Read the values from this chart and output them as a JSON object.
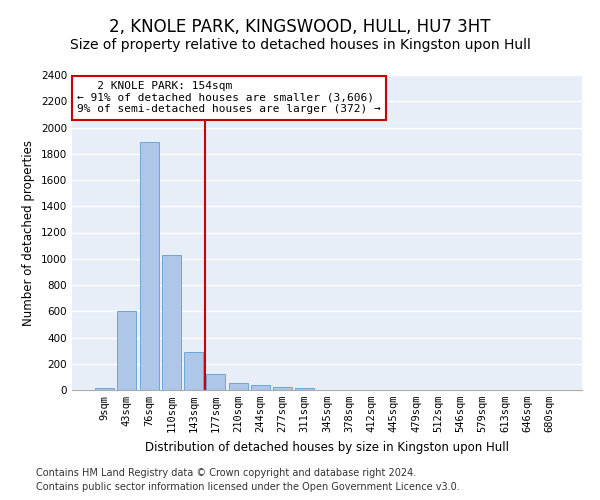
{
  "title": "2, KNOLE PARK, KINGSWOOD, HULL, HU7 3HT",
  "subtitle": "Size of property relative to detached houses in Kingston upon Hull",
  "xlabel": "Distribution of detached houses by size in Kingston upon Hull",
  "ylabel": "Number of detached properties",
  "footer_line1": "Contains HM Land Registry data © Crown copyright and database right 2024.",
  "footer_line2": "Contains public sector information licensed under the Open Government Licence v3.0.",
  "annotation_line1": "   2 KNOLE PARK: 154sqm",
  "annotation_line2": "← 91% of detached houses are smaller (3,606)",
  "annotation_line3": "9% of semi-detached houses are larger (372) →",
  "bar_color": "#aec6e8",
  "bar_edge_color": "#5a9fd4",
  "vline_color": "#cc0000",
  "annotation_box_color": "#cc0000",
  "background_color": "#e8eef8",
  "grid_color": "#ffffff",
  "categories": [
    "9sqm",
    "43sqm",
    "76sqm",
    "110sqm",
    "143sqm",
    "177sqm",
    "210sqm",
    "244sqm",
    "277sqm",
    "311sqm",
    "345sqm",
    "378sqm",
    "412sqm",
    "445sqm",
    "479sqm",
    "512sqm",
    "546sqm",
    "579sqm",
    "613sqm",
    "646sqm",
    "680sqm"
  ],
  "values": [
    15,
    600,
    1890,
    1030,
    290,
    120,
    50,
    35,
    25,
    15,
    0,
    0,
    0,
    0,
    0,
    0,
    0,
    0,
    0,
    0,
    0
  ],
  "ylim": [
    0,
    2400
  ],
  "yticks": [
    0,
    200,
    400,
    600,
    800,
    1000,
    1200,
    1400,
    1600,
    1800,
    2000,
    2200,
    2400
  ],
  "vline_x": 4.5,
  "title_fontsize": 12,
  "subtitle_fontsize": 10,
  "axis_label_fontsize": 8.5,
  "tick_fontsize": 7.5,
  "annotation_fontsize": 8,
  "footer_fontsize": 7
}
